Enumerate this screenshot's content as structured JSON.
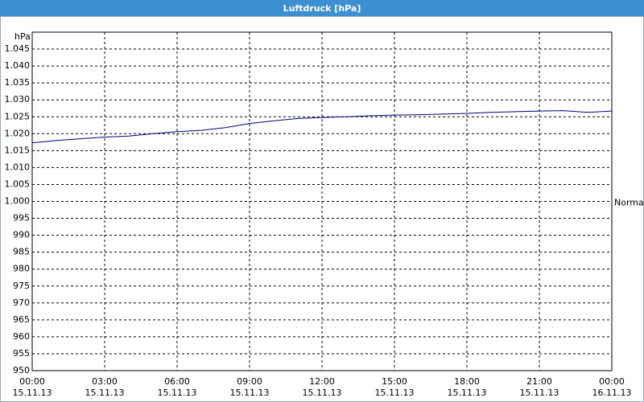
{
  "chart_data": {
    "type": "line",
    "title": "Luftdruck [hPa]",
    "y_unit": "hPa",
    "x": [
      0,
      1,
      2,
      3,
      4,
      5,
      6,
      7,
      8,
      9,
      10,
      11,
      12,
      13,
      14,
      15,
      16,
      17,
      18,
      19,
      20,
      21,
      22,
      23,
      24
    ],
    "series": [
      {
        "name": "Normal",
        "color": "#000080",
        "values": [
          1017.3,
          1018,
          1018.5,
          1019,
          1019.3,
          1020,
          1020.6,
          1021,
          1021.8,
          1023,
          1023.8,
          1024.5,
          1024.8,
          1025,
          1025.3,
          1025.5,
          1025.6,
          1025.8,
          1026,
          1026.3,
          1026.5,
          1026.7,
          1026.8,
          1026.3,
          1026.7
        ]
      }
    ],
    "xlim": [
      0,
      24
    ],
    "xticks": [
      {
        "value": 0,
        "label": "00:00\n15.11.13"
      },
      {
        "value": 3,
        "label": "03:00\n15.11.13"
      },
      {
        "value": 6,
        "label": "06:00\n15.11.13"
      },
      {
        "value": 9,
        "label": "09:00\n15.11.13"
      },
      {
        "value": 12,
        "label": "12:00\n15.11.13"
      },
      {
        "value": 15,
        "label": "15:00\n15.11.13"
      },
      {
        "value": 18,
        "label": "18:00\n15.11.13"
      },
      {
        "value": 21,
        "label": "21:00\n15.11.13"
      },
      {
        "value": 24,
        "label": "00:00\n16.11.13"
      }
    ],
    "ylim": [
      950,
      1050
    ],
    "yticks": [
      950,
      955,
      960,
      965,
      970,
      975,
      980,
      985,
      990,
      995,
      {
        "value": 1000,
        "label": "1.000"
      },
      {
        "value": 1005,
        "label": "1.005"
      },
      {
        "value": 1010,
        "label": "1.010"
      },
      {
        "value": 1015,
        "label": "1.015"
      },
      {
        "value": 1020,
        "label": "1.020"
      },
      {
        "value": 1025,
        "label": "1.025"
      },
      {
        "value": 1030,
        "label": "1.030"
      },
      {
        "value": 1035,
        "label": "1.035"
      },
      {
        "value": 1040,
        "label": "1.040"
      },
      {
        "value": 1045,
        "label": "1.045"
      }
    ],
    "grid": true
  }
}
